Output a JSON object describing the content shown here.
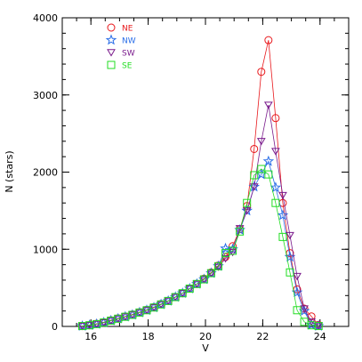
{
  "chart_data": {
    "type": "line",
    "title": "",
    "xlabel": "V",
    "ylabel": "N (stars)",
    "xlim": [
      15,
      25
    ],
    "ylim": [
      0,
      4000
    ],
    "x_ticks": [
      16,
      18,
      20,
      22,
      24
    ],
    "x_tick_labels": [
      "16",
      "18",
      "20",
      "22",
      "24"
    ],
    "y_ticks": [
      0,
      1000,
      2000,
      3000,
      4000
    ],
    "y_tick_labels": [
      "0",
      "1000",
      "2000",
      "3000",
      "4000"
    ],
    "x_minor_step": 0.5,
    "y_minor_step": 200,
    "grid": false,
    "legend_position": "top-left",
    "series": [
      {
        "name": "NE",
        "color": "#e8181c",
        "marker": "circle",
        "x": [
          15.7,
          15.95,
          16.2,
          16.45,
          16.7,
          16.95,
          17.2,
          17.45,
          17.7,
          17.95,
          18.2,
          18.45,
          18.7,
          18.95,
          19.2,
          19.45,
          19.7,
          19.95,
          20.2,
          20.45,
          20.7,
          20.95,
          21.2,
          21.45,
          21.7,
          21.95,
          22.2,
          22.45,
          22.7,
          22.95,
          23.2,
          23.45,
          23.7,
          23.95
        ],
        "y": [
          5,
          15,
          35,
          55,
          80,
          105,
          130,
          155,
          185,
          215,
          250,
          290,
          330,
          380,
          430,
          490,
          550,
          620,
          700,
          790,
          900,
          1040,
          1260,
          1560,
          2300,
          3300,
          3710,
          2700,
          1600,
          950,
          480,
          230,
          130,
          20
        ]
      },
      {
        "name": "NW",
        "color": "#2a6ee8",
        "marker": "star",
        "x": [
          15.7,
          15.95,
          16.2,
          16.45,
          16.7,
          16.95,
          17.2,
          17.45,
          17.7,
          17.95,
          18.2,
          18.45,
          18.7,
          18.95,
          19.2,
          19.45,
          19.7,
          19.95,
          20.2,
          20.45,
          20.7,
          20.95,
          21.2,
          21.45,
          21.7,
          21.95,
          22.2,
          22.45,
          22.7,
          22.95,
          23.2,
          23.45,
          23.7,
          23.95
        ],
        "y": [
          5,
          15,
          30,
          50,
          75,
          100,
          125,
          150,
          180,
          210,
          245,
          285,
          330,
          380,
          430,
          490,
          550,
          610,
          690,
          780,
          1010,
          1000,
          1250,
          1500,
          1810,
          1970,
          2140,
          1800,
          1440,
          900,
          440,
          200,
          20,
          5
        ]
      },
      {
        "name": "SW",
        "color": "#7a1a8c",
        "marker": "triangle-down",
        "x": [
          15.7,
          15.95,
          16.2,
          16.45,
          16.7,
          16.95,
          17.2,
          17.45,
          17.7,
          17.95,
          18.2,
          18.45,
          18.7,
          18.95,
          19.2,
          19.45,
          19.7,
          19.95,
          20.2,
          20.45,
          20.7,
          20.95,
          21.2,
          21.45,
          21.7,
          21.95,
          22.2,
          22.45,
          22.7,
          22.95,
          23.2,
          23.45,
          23.7,
          23.95
        ],
        "y": [
          5,
          15,
          30,
          50,
          75,
          100,
          125,
          150,
          180,
          210,
          245,
          285,
          330,
          380,
          430,
          490,
          550,
          610,
          690,
          770,
          880,
          960,
          1270,
          1500,
          1810,
          2400,
          2870,
          2270,
          1700,
          1180,
          650,
          230,
          60,
          10
        ]
      },
      {
        "name": "SE",
        "color": "#22dd22",
        "marker": "square",
        "x": [
          15.7,
          15.95,
          16.2,
          16.45,
          16.7,
          16.95,
          17.2,
          17.45,
          17.7,
          17.95,
          18.2,
          18.45,
          18.7,
          18.95,
          19.2,
          19.45,
          19.7,
          19.95,
          20.2,
          20.45,
          20.7,
          20.95,
          21.2,
          21.45,
          21.7,
          21.95,
          22.2,
          22.45,
          22.7,
          22.95,
          23.2,
          23.45,
          23.7,
          23.95
        ],
        "y": [
          5,
          15,
          30,
          50,
          75,
          100,
          125,
          150,
          180,
          210,
          245,
          285,
          330,
          380,
          430,
          490,
          550,
          610,
          690,
          780,
          950,
          980,
          1230,
          1600,
          1960,
          2040,
          1970,
          1600,
          1160,
          700,
          210,
          60,
          15,
          5
        ]
      }
    ]
  }
}
